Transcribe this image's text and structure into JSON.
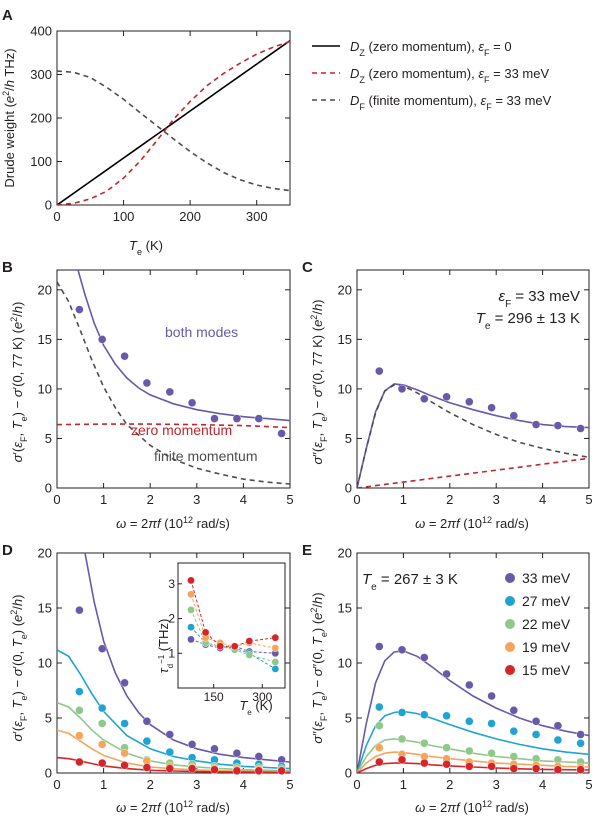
{
  "chart_data": [
    {
      "panel": "A",
      "type": "line",
      "ylabel": "Drude weight (e²/h THz)",
      "xlabel": "Tₑ (K)",
      "xlim": [
        0,
        350
      ],
      "ylim": [
        0,
        400
      ],
      "xticks": [
        0,
        100,
        200,
        300
      ],
      "yticks": [
        0,
        100,
        200,
        300,
        400
      ],
      "x": [
        0,
        25,
        50,
        75,
        100,
        125,
        150,
        175,
        200,
        225,
        250,
        275,
        300,
        325,
        350
      ],
      "series": [
        {
          "name": "D_Z (zero momentum), ε_F = 0",
          "color": "#000000",
          "dash": "solid",
          "values": [
            0,
            27,
            54,
            81,
            108,
            135,
            162,
            189,
            216,
            243,
            270,
            297,
            324,
            351,
            378
          ]
        },
        {
          "name": "D_Z (zero momentum), ε_F = 33 meV",
          "color": "#c0272d",
          "dash": "dashed",
          "values": [
            0,
            4,
            14,
            32,
            62,
            101,
            148,
            197,
            238,
            274,
            302,
            326,
            347,
            363,
            376
          ]
        },
        {
          "name": "D_F (finite momentum), ε_F = 33 meV",
          "color": "#4d4d4f",
          "dash": "dashed",
          "values": [
            308,
            305,
            293,
            270,
            243,
            212,
            182,
            152,
            123,
            97,
            75,
            58,
            46,
            38,
            33
          ]
        }
      ]
    },
    {
      "panel": "B",
      "type": "line+scatter",
      "ylabel": "σ′(ε_F, Tₑ) − σ′(0, 77 K) (e²/h)",
      "xlabel": "ω = 2πf (10¹² rad/s)",
      "xlim": [
        0,
        5
      ],
      "ylim": [
        0,
        22
      ],
      "xticks": [
        0,
        1,
        2,
        3,
        4,
        5
      ],
      "yticks": [
        0,
        5,
        10,
        15,
        20
      ],
      "annotations": [
        "both modes",
        "zero momentum",
        "finite momentum"
      ],
      "points": {
        "color": "#6a58a8",
        "x": [
          0.48,
          0.97,
          1.45,
          1.93,
          2.42,
          2.9,
          3.38,
          3.86,
          4.33,
          4.82
        ],
        "y": [
          18.0,
          15.0,
          13.3,
          10.6,
          9.7,
          8.6,
          7.0,
          7.0,
          7.0,
          5.5
        ]
      },
      "series": [
        {
          "name": "both modes",
          "color": "#6a58a8",
          "dash": "solid",
          "x": [
            0.45,
            0.6,
            0.8,
            1.0,
            1.25,
            1.5,
            1.75,
            2.0,
            2.5,
            3.0,
            3.5,
            4.0,
            4.5,
            5.0
          ],
          "values": [
            22,
            19.5,
            16.6,
            14.4,
            12.5,
            11.1,
            10.1,
            9.4,
            8.5,
            7.9,
            7.5,
            7.2,
            7.0,
            6.8
          ]
        },
        {
          "name": "zero momentum",
          "color": "#c0272d",
          "dash": "dashed",
          "x": [
            0,
            1,
            2,
            3,
            4,
            5
          ],
          "values": [
            6.4,
            6.45,
            6.45,
            6.4,
            6.3,
            6.1
          ]
        },
        {
          "name": "finite momentum",
          "color": "#4d4d4f",
          "dash": "dashed",
          "x": [
            0,
            0.25,
            0.5,
            0.75,
            1.0,
            1.25,
            1.5,
            2.0,
            2.5,
            3.0,
            3.5,
            4.0,
            4.5,
            5.0
          ],
          "values": [
            20.8,
            18.8,
            15.9,
            12.9,
            10.2,
            8.1,
            6.4,
            4.3,
            2.9,
            2.0,
            1.4,
            0.9,
            0.6,
            0.4
          ]
        }
      ]
    },
    {
      "panel": "C",
      "type": "line+scatter",
      "ylabel": "σ″(ε_F, Tₑ) − σ″(0, 77 K) (e²/h)",
      "xlabel": "ω = 2πf (10¹² rad/s)",
      "xlim": [
        0,
        5
      ],
      "ylim": [
        0,
        22
      ],
      "xticks": [
        0,
        1,
        2,
        3,
        4,
        5
      ],
      "yticks": [
        0,
        5,
        10,
        15,
        20
      ],
      "annotations": [
        "ε_F = 33 meV",
        "Tₑ = 296 ± 13 K"
      ],
      "points": {
        "color": "#6a58a8",
        "x": [
          0.48,
          0.97,
          1.45,
          1.93,
          2.42,
          2.9,
          3.38,
          3.86,
          4.33,
          4.82
        ],
        "y": [
          11.8,
          10.0,
          9.0,
          9.2,
          8.7,
          8.1,
          7.3,
          6.4,
          6.3,
          6.0
        ]
      },
      "series": [
        {
          "name": "both modes",
          "color": "#6a58a8",
          "dash": "solid",
          "x": [
            0,
            0.2,
            0.4,
            0.6,
            0.8,
            1.0,
            1.3,
            1.6,
            2.0,
            2.5,
            3.0,
            3.5,
            4.0,
            4.5,
            5.0
          ],
          "values": [
            0,
            4.0,
            7.7,
            9.8,
            10.5,
            10.4,
            9.9,
            9.3,
            8.6,
            7.9,
            7.3,
            6.8,
            6.4,
            6.2,
            6.1
          ]
        },
        {
          "name": "finite momentum",
          "color": "#4d4d4f",
          "dash": "dashed",
          "x": [
            0,
            0.2,
            0.4,
            0.6,
            0.8,
            1.0,
            1.3,
            1.6,
            2.0,
            2.5,
            3.0,
            3.5,
            4.0,
            4.5,
            5.0
          ],
          "values": [
            0,
            4.0,
            7.6,
            9.8,
            10.4,
            10.3,
            9.6,
            8.7,
            7.6,
            6.4,
            5.4,
            4.6,
            4.0,
            3.5,
            3.1
          ]
        },
        {
          "name": "zero momentum",
          "color": "#c0272d",
          "dash": "dashed",
          "x": [
            0,
            1,
            2,
            3,
            4,
            5
          ],
          "values": [
            0,
            0.6,
            1.2,
            1.8,
            2.4,
            3.0
          ]
        }
      ]
    },
    {
      "panel": "D",
      "type": "line+scatter",
      "ylabel": "σ′(ε_F, Tₑ) − σ′(0, Tₑ) (e²/h)",
      "xlabel": "ω = 2πf (10¹² rad/s)",
      "xlim": [
        0,
        5
      ],
      "ylim": [
        0,
        20
      ],
      "xticks": [
        0,
        1,
        2,
        3,
        4,
        5
      ],
      "yticks": [
        0,
        5,
        10,
        15,
        20
      ],
      "x_points": [
        0.48,
        0.97,
        1.45,
        1.93,
        2.42,
        2.9,
        3.38,
        3.86,
        4.33,
        4.82
      ],
      "series": [
        {
          "name": "33 meV",
          "color": "#6a58a8",
          "points": [
            14.8,
            11.3,
            8.2,
            4.7,
            3.5,
            2.6,
            2.2,
            1.8,
            1.5,
            1.2
          ],
          "x": [
            0.6,
            0.8,
            1.0,
            1.25,
            1.5,
            1.75,
            2.0,
            2.5,
            3.0,
            3.5,
            4.0,
            4.5,
            5.0
          ],
          "values": [
            20,
            15.5,
            12.0,
            9.1,
            7.0,
            5.5,
            4.4,
            3.0,
            2.2,
            1.7,
            1.4,
            1.2,
            1.0
          ]
        },
        {
          "name": "27 meV",
          "color": "#1fa3d3",
          "points": [
            7.4,
            5.9,
            4.5,
            2.9,
            1.9,
            1.4,
            1.2,
            0.9,
            0.8,
            0.6
          ],
          "x": [
            0,
            0.25,
            0.5,
            0.75,
            1.0,
            1.5,
            2.0,
            2.5,
            3.0,
            3.5,
            4.0,
            4.5,
            5.0
          ],
          "values": [
            11.2,
            10.6,
            9.0,
            7.2,
            5.6,
            3.4,
            2.2,
            1.5,
            1.1,
            0.8,
            0.6,
            0.5,
            0.4
          ]
        },
        {
          "name": "22 meV",
          "color": "#8ec98a",
          "points": [
            5.7,
            4.5,
            2.3,
            1.2,
            0.9,
            0.8,
            0.6,
            0.5,
            0.5,
            0.4
          ],
          "x": [
            0,
            0.25,
            0.5,
            0.75,
            1.0,
            1.5,
            2.0,
            2.5,
            3.0,
            3.5,
            4.0,
            4.5,
            5.0
          ],
          "values": [
            6.4,
            6.0,
            5.0,
            3.9,
            3.0,
            1.8,
            1.1,
            0.75,
            0.55,
            0.4,
            0.3,
            0.25,
            0.2
          ]
        },
        {
          "name": "19 meV",
          "color": "#f5a45d",
          "points": [
            3.4,
            2.6,
            1.8,
            1.1,
            0.6,
            0.5,
            0.4,
            0.3,
            0.3,
            0.2
          ],
          "x": [
            0,
            0.25,
            0.5,
            0.75,
            1.0,
            1.5,
            2.0,
            2.5,
            3.0,
            3.5,
            4.0,
            4.5,
            5.0
          ],
          "values": [
            3.9,
            3.6,
            2.9,
            2.2,
            1.6,
            0.9,
            0.55,
            0.38,
            0.28,
            0.2,
            0.16,
            0.13,
            0.1
          ]
        },
        {
          "name": "15 meV",
          "color": "#d62528",
          "points": [
            1.0,
            0.9,
            0.7,
            0.5,
            0.4,
            0.4,
            0.3,
            0.2,
            0.2,
            0.2
          ],
          "x": [
            0,
            0.25,
            0.5,
            0.75,
            1.0,
            1.5,
            2.0,
            2.5,
            3.0,
            3.5,
            4.0,
            4.5,
            5.0
          ],
          "values": [
            1.4,
            1.3,
            1.1,
            0.85,
            0.65,
            0.4,
            0.25,
            0.18,
            0.13,
            0.1,
            0.08,
            0.06,
            0.05
          ]
        }
      ],
      "inset": {
        "ylabel": "τ_d⁻¹ (THz)",
        "xlabel": "Tₑ (K)",
        "xlim": [
          40,
          370
        ],
        "ylim": [
          0,
          3.6
        ],
        "xticks": [
          150,
          300
        ],
        "yticks": [
          1,
          2,
          3
        ],
        "series": [
          {
            "name": "33 meV",
            "color": "#6a58a8",
            "x": [
              80,
              125,
              170,
              215,
              260,
              340
            ],
            "values": [
              1.4,
              1.25,
              1.15,
              1.2,
              1.05,
              1.0
            ]
          },
          {
            "name": "27 meV",
            "color": "#1fa3d3",
            "x": [
              80,
              125,
              170,
              215,
              260,
              340
            ],
            "values": [
              1.75,
              1.3,
              1.2,
              1.15,
              1.0,
              0.55
            ]
          },
          {
            "name": "22 meV",
            "color": "#8ec98a",
            "x": [
              80,
              125,
              170,
              215,
              260,
              340
            ],
            "values": [
              2.25,
              1.3,
              1.2,
              1.1,
              0.95,
              0.75
            ]
          },
          {
            "name": "19 meV",
            "color": "#f5a45d",
            "x": [
              80,
              125,
              170,
              215,
              260,
              340
            ],
            "values": [
              2.7,
              1.45,
              1.3,
              1.2,
              1.3,
              1.15
            ]
          },
          {
            "name": "15 meV",
            "color": "#d62528",
            "x": [
              80,
              125,
              170,
              215,
              260,
              340
            ],
            "values": [
              3.1,
              1.6,
              1.2,
              1.2,
              1.35,
              1.45
            ]
          }
        ]
      }
    },
    {
      "panel": "E",
      "type": "line+scatter",
      "ylabel": "σ″(ε_F, Tₑ) − σ″(0, Tₑ) (e²/h)",
      "xlabel": "ω = 2πf (10¹² rad/s)",
      "xlim": [
        0,
        5
      ],
      "ylim": [
        0,
        20
      ],
      "xticks": [
        0,
        1,
        2,
        3,
        4,
        5
      ],
      "yticks": [
        0,
        5,
        10,
        15,
        20
      ],
      "annotations": [
        "Tₑ = 267 ± 3 K"
      ],
      "legend_position": "top-right",
      "x_points": [
        0.48,
        0.97,
        1.45,
        1.93,
        2.42,
        2.9,
        3.38,
        3.86,
        4.33,
        4.82
      ],
      "series": [
        {
          "name": "33 meV",
          "color": "#6a58a8",
          "points": [
            11.5,
            11.2,
            10.5,
            9.0,
            8.0,
            7.0,
            5.7,
            4.7,
            4.3,
            3.5
          ],
          "x": [
            0,
            0.2,
            0.4,
            0.6,
            0.8,
            1.0,
            1.3,
            1.6,
            2.0,
            2.5,
            3.0,
            3.5,
            4.0,
            4.5,
            5.0
          ],
          "values": [
            0,
            4.5,
            8.2,
            10.2,
            11.0,
            11.1,
            10.6,
            9.7,
            8.4,
            7.0,
            5.9,
            5.0,
            4.3,
            3.8,
            3.4
          ]
        },
        {
          "name": "27 meV",
          "color": "#1fa3d3",
          "points": [
            6.0,
            5.5,
            5.3,
            5.2,
            4.7,
            4.5,
            3.8,
            3.5,
            3.0,
            2.7
          ],
          "x": [
            0,
            0.2,
            0.4,
            0.6,
            0.8,
            1.0,
            1.3,
            1.6,
            2.0,
            2.5,
            3.0,
            3.5,
            4.0,
            4.5,
            5.0
          ],
          "values": [
            0,
            2.5,
            4.3,
            5.2,
            5.5,
            5.6,
            5.4,
            5.0,
            4.4,
            3.7,
            3.1,
            2.6,
            2.2,
            1.9,
            1.7
          ]
        },
        {
          "name": "22 meV",
          "color": "#8ec98a",
          "points": [
            4.3,
            3.1,
            2.7,
            2.3,
            2.0,
            1.8,
            1.5,
            1.3,
            1.2,
            1.0
          ],
          "x": [
            0,
            0.2,
            0.4,
            0.6,
            0.8,
            1.0,
            1.3,
            1.6,
            2.0,
            2.5,
            3.0,
            3.5,
            4.0,
            4.5,
            5.0
          ],
          "values": [
            0,
            1.5,
            2.5,
            3.0,
            3.1,
            3.0,
            2.8,
            2.5,
            2.2,
            1.8,
            1.5,
            1.3,
            1.1,
            1.0,
            0.9
          ]
        },
        {
          "name": "19 meV",
          "color": "#f5a45d",
          "points": [
            2.3,
            1.7,
            1.5,
            1.3,
            1.0,
            0.9,
            0.8,
            0.7,
            0.6,
            0.5
          ],
          "x": [
            0,
            0.2,
            0.4,
            0.6,
            0.8,
            1.0,
            1.3,
            1.6,
            2.0,
            2.5,
            3.0,
            3.5,
            4.0,
            4.5,
            5.0
          ],
          "values": [
            0,
            0.9,
            1.5,
            1.8,
            1.9,
            1.85,
            1.7,
            1.5,
            1.3,
            1.1,
            0.9,
            0.8,
            0.7,
            0.6,
            0.55
          ]
        },
        {
          "name": "15 meV",
          "color": "#d62528",
          "points": [
            1.0,
            1.2,
            0.9,
            0.8,
            0.6,
            0.6,
            0.4,
            0.4,
            0.3,
            0.3
          ],
          "x": [
            0,
            0.2,
            0.4,
            0.6,
            0.8,
            1.0,
            1.3,
            1.6,
            2.0,
            2.5,
            3.0,
            3.5,
            4.0,
            4.5,
            5.0
          ],
          "values": [
            0,
            0.4,
            0.7,
            0.85,
            0.9,
            0.9,
            0.85,
            0.75,
            0.65,
            0.55,
            0.45,
            0.38,
            0.33,
            0.3,
            0.27
          ]
        }
      ]
    }
  ]
}
